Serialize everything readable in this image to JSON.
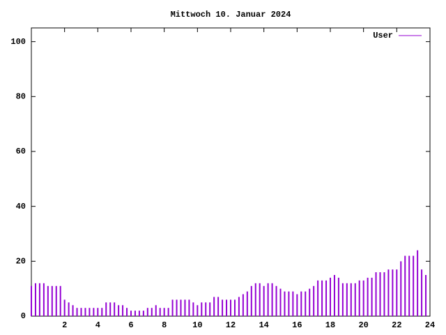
{
  "chart_data": {
    "type": "impulse",
    "title": "Mittwoch 10. Januar 2024",
    "series": [
      {
        "name": "User",
        "color": "#9400d3",
        "values": [
          11,
          12,
          12,
          12,
          11,
          11,
          11,
          11,
          6,
          5,
          4,
          3,
          3,
          3,
          3,
          3,
          3,
          3,
          5,
          5,
          5,
          4,
          4,
          3,
          2,
          2,
          2,
          2,
          3,
          3,
          4,
          3,
          3,
          3,
          6,
          6,
          6,
          6,
          6,
          5,
          4,
          5,
          5,
          5,
          7,
          7,
          6,
          6,
          6,
          6,
          7,
          8,
          9,
          11,
          12,
          12,
          11,
          12,
          12,
          11,
          10,
          9,
          9,
          9,
          8,
          9,
          9,
          10,
          11,
          13,
          13,
          13,
          14,
          15,
          14,
          12,
          12,
          12,
          12,
          13,
          13,
          14,
          14,
          16,
          16,
          16,
          17,
          17,
          17,
          20,
          22,
          22,
          22,
          24,
          17,
          15
        ]
      }
    ],
    "x": [
      0,
      0.25,
      0.5,
      0.75,
      1,
      1.25,
      1.5,
      1.75,
      2,
      2.25,
      2.5,
      2.75,
      3,
      3.25,
      3.5,
      3.75,
      4,
      4.25,
      4.5,
      4.75,
      5,
      5.25,
      5.5,
      5.75,
      6,
      6.25,
      6.5,
      6.75,
      7,
      7.25,
      7.5,
      7.75,
      8,
      8.25,
      8.5,
      8.75,
      9,
      9.25,
      9.5,
      9.75,
      10,
      10.25,
      10.5,
      10.75,
      11,
      11.25,
      11.5,
      11.75,
      12,
      12.25,
      12.5,
      12.75,
      13,
      13.25,
      13.5,
      13.75,
      14,
      14.25,
      14.5,
      14.75,
      15,
      15.25,
      15.5,
      15.75,
      16,
      16.25,
      16.5,
      16.75,
      17,
      17.25,
      17.5,
      17.75,
      18,
      18.25,
      18.5,
      18.75,
      19,
      19.25,
      19.5,
      19.75,
      20,
      20.25,
      20.5,
      20.75,
      21,
      21.25,
      21.5,
      21.75,
      22,
      22.25,
      22.5,
      22.75,
      23,
      23.25,
      23.5,
      23.75
    ],
    "xlim": [
      0,
      24
    ],
    "xticks": [
      2,
      4,
      6,
      8,
      10,
      12,
      14,
      16,
      18,
      20,
      22,
      24
    ],
    "ylim": [
      0,
      105
    ],
    "yticks": [
      0,
      20,
      40,
      60,
      80,
      100
    ],
    "legend": "top-right"
  }
}
